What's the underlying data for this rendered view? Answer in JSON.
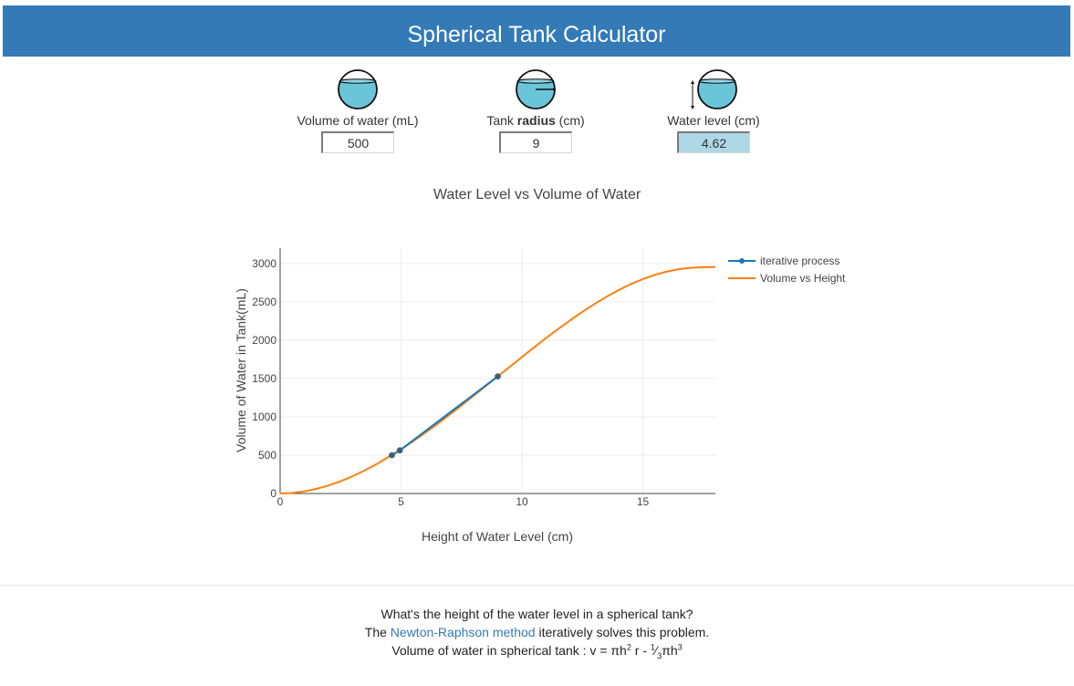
{
  "header": {
    "title": "Spherical Tank Calculator"
  },
  "inputs": {
    "volume": {
      "label": "Volume of water (mL)",
      "value": "500",
      "icon": "sphere-volume-icon"
    },
    "radius": {
      "label_prefix": "Tank ",
      "label_bold": "radius",
      "label_suffix": " (cm)",
      "value": "9",
      "icon": "sphere-radius-icon"
    },
    "level": {
      "label": "Water level (cm)",
      "value": "4.62",
      "icon": "sphere-level-icon"
    }
  },
  "colors": {
    "header": "#337ab7",
    "water": "#6bc5d9",
    "result_bg": "#add8e6",
    "series_iter": "#1f77b4",
    "series_curve": "#ff7f0e"
  },
  "chart_data": {
    "type": "line",
    "title": "Water Level vs Volume of Water",
    "xlabel": "Height of Water Level (cm)",
    "ylabel": "Volume of Water in Tank(mL)",
    "xlim": [
      0,
      18
    ],
    "ylim": [
      0,
      3200
    ],
    "xticks": [
      0,
      5,
      10,
      15
    ],
    "yticks": [
      0,
      500,
      1000,
      1500,
      2000,
      2500,
      3000
    ],
    "grid": true,
    "legend_position": "top-right",
    "series": [
      {
        "name": "iterative process",
        "mode": "lines+markers",
        "x": [
          9,
          4.95,
          4.62
        ],
        "y": [
          1527,
          563,
          500
        ]
      },
      {
        "name": "Volume vs Height",
        "mode": "lines",
        "x": [
          0,
          0.5,
          1,
          1.5,
          2,
          2.5,
          3,
          3.5,
          4,
          4.5,
          5,
          5.5,
          6,
          6.5,
          7,
          7.5,
          8,
          8.5,
          9,
          9.5,
          10,
          10.5,
          11,
          11.5,
          12,
          12.5,
          13,
          13.5,
          14,
          14.5,
          15,
          15.5,
          16,
          16.5,
          17,
          17.5,
          18
        ],
        "y": [
          0,
          6.8,
          27.2,
          60.1,
          104.7,
          160.3,
          226.2,
          301.6,
          385.4,
          481.0,
          575.9,
          681.1,
          791.7,
          906.6,
          1026.3,
          1148.6,
          1273.7,
          1400.9,
          1527,
          1653.0,
          1780.0,
          1905.4,
          2027.9,
          2146.5,
          2260.8,
          2369.4,
          2472.3,
          2567.1,
          2653.9,
          2731.2,
          2797.0,
          2852.3,
          2895.5,
          2926.3,
          2944.8,
          2951.2,
          2953.6
        ]
      }
    ]
  },
  "footer": {
    "line1": "What's the height of the water level in a spherical tank?",
    "line2_prefix": "The ",
    "line2_link": "Newton-Raphson method",
    "line2_suffix": " iteratively solves this problem.",
    "line3_prefix": "Volume of water in spherical tank : v = πh",
    "line3_mid": " r - ",
    "line3_end": "πh",
    "sup2": "2",
    "sup3": "3",
    "frac_num": "1",
    "frac_den": "3"
  }
}
